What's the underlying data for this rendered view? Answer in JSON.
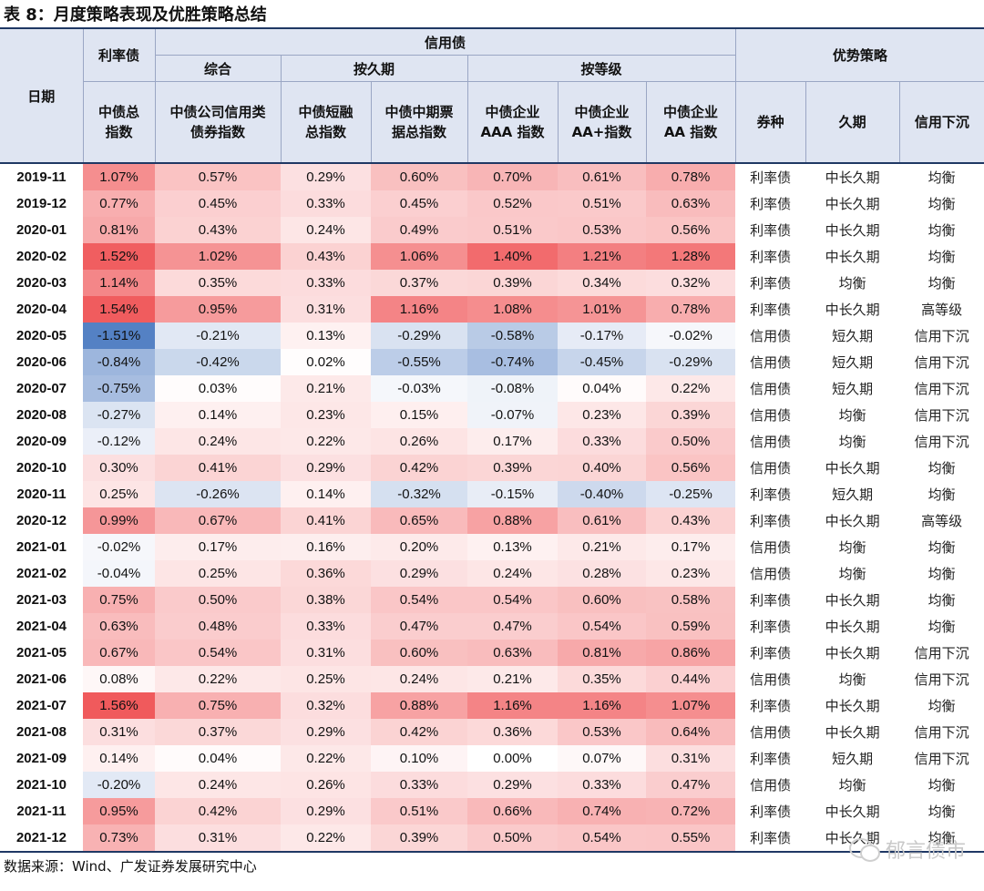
{
  "title": "表 8：月度策略表现及优胜策略总结",
  "header": {
    "date": "日期",
    "rate_group": "利率债",
    "credit_group": "信用债",
    "advantage_group": "优势策略",
    "sub_composite": "综合",
    "sub_duration": "按久期",
    "sub_grade": "按等级",
    "columns": [
      "中债总\n指数",
      "中债公司信用类\n债券指数",
      "中债短融\n总指数",
      "中债中期票\n据总指数",
      "中债企业\nAAA 指数",
      "中债企业\nAA+指数",
      "中债企业\nAA 指数",
      "券种",
      "久期",
      "信用下沉"
    ]
  },
  "rows": [
    {
      "date": "2019-11",
      "v": [
        "1.07%",
        "0.57%",
        "0.29%",
        "0.60%",
        "0.70%",
        "0.61%",
        "0.78%"
      ],
      "n": [
        1.07,
        0.57,
        0.29,
        0.6,
        0.7,
        0.61,
        0.78
      ],
      "s": [
        "利率债",
        "中长久期",
        "均衡"
      ]
    },
    {
      "date": "2019-12",
      "v": [
        "0.77%",
        "0.45%",
        "0.33%",
        "0.45%",
        "0.52%",
        "0.51%",
        "0.63%"
      ],
      "n": [
        0.77,
        0.45,
        0.33,
        0.45,
        0.52,
        0.51,
        0.63
      ],
      "s": [
        "利率债",
        "中长久期",
        "均衡"
      ]
    },
    {
      "date": "2020-01",
      "v": [
        "0.81%",
        "0.43%",
        "0.24%",
        "0.49%",
        "0.51%",
        "0.53%",
        "0.56%"
      ],
      "n": [
        0.81,
        0.43,
        0.24,
        0.49,
        0.51,
        0.53,
        0.56
      ],
      "s": [
        "利率债",
        "中长久期",
        "均衡"
      ]
    },
    {
      "date": "2020-02",
      "v": [
        "1.52%",
        "1.02%",
        "0.43%",
        "1.06%",
        "1.40%",
        "1.21%",
        "1.28%"
      ],
      "n": [
        1.52,
        1.02,
        0.43,
        1.06,
        1.4,
        1.21,
        1.28
      ],
      "s": [
        "利率债",
        "中长久期",
        "均衡"
      ]
    },
    {
      "date": "2020-03",
      "v": [
        "1.14%",
        "0.35%",
        "0.33%",
        "0.37%",
        "0.39%",
        "0.34%",
        "0.32%"
      ],
      "n": [
        1.14,
        0.35,
        0.33,
        0.37,
        0.39,
        0.34,
        0.32
      ],
      "s": [
        "利率债",
        "均衡",
        "均衡"
      ]
    },
    {
      "date": "2020-04",
      "v": [
        "1.54%",
        "0.95%",
        "0.31%",
        "1.16%",
        "1.08%",
        "1.01%",
        "0.78%"
      ],
      "n": [
        1.54,
        0.95,
        0.31,
        1.16,
        1.08,
        1.01,
        0.78
      ],
      "s": [
        "利率债",
        "中长久期",
        "高等级"
      ]
    },
    {
      "date": "2020-05",
      "v": [
        "-1.51%",
        "-0.21%",
        "0.13%",
        "-0.29%",
        "-0.58%",
        "-0.17%",
        "-0.02%"
      ],
      "n": [
        -1.51,
        -0.21,
        0.13,
        -0.29,
        -0.58,
        -0.17,
        -0.02
      ],
      "s": [
        "信用债",
        "短久期",
        "信用下沉"
      ]
    },
    {
      "date": "2020-06",
      "v": [
        "-0.84%",
        "-0.42%",
        "0.02%",
        "-0.55%",
        "-0.74%",
        "-0.45%",
        "-0.29%"
      ],
      "n": [
        -0.84,
        -0.42,
        0.02,
        -0.55,
        -0.74,
        -0.45,
        -0.29
      ],
      "s": [
        "信用债",
        "短久期",
        "信用下沉"
      ]
    },
    {
      "date": "2020-07",
      "v": [
        "-0.75%",
        "0.03%",
        "0.21%",
        "-0.03%",
        "-0.08%",
        "0.04%",
        "0.22%"
      ],
      "n": [
        -0.75,
        0.03,
        0.21,
        -0.03,
        -0.08,
        0.04,
        0.22
      ],
      "s": [
        "信用债",
        "短久期",
        "信用下沉"
      ]
    },
    {
      "date": "2020-08",
      "v": [
        "-0.27%",
        "0.14%",
        "0.23%",
        "0.15%",
        "-0.07%",
        "0.23%",
        "0.39%"
      ],
      "n": [
        -0.27,
        0.14,
        0.23,
        0.15,
        -0.07,
        0.23,
        0.39
      ],
      "s": [
        "信用债",
        "均衡",
        "信用下沉"
      ]
    },
    {
      "date": "2020-09",
      "v": [
        "-0.12%",
        "0.24%",
        "0.22%",
        "0.26%",
        "0.17%",
        "0.33%",
        "0.50%"
      ],
      "n": [
        -0.12,
        0.24,
        0.22,
        0.26,
        0.17,
        0.33,
        0.5
      ],
      "s": [
        "信用债",
        "均衡",
        "信用下沉"
      ]
    },
    {
      "date": "2020-10",
      "v": [
        "0.30%",
        "0.41%",
        "0.29%",
        "0.42%",
        "0.39%",
        "0.40%",
        "0.56%"
      ],
      "n": [
        0.3,
        0.41,
        0.29,
        0.42,
        0.39,
        0.4,
        0.56
      ],
      "s": [
        "信用债",
        "中长久期",
        "均衡"
      ]
    },
    {
      "date": "2020-11",
      "v": [
        "0.25%",
        "-0.26%",
        "0.14%",
        "-0.32%",
        "-0.15%",
        "-0.40%",
        "-0.25%"
      ],
      "n": [
        0.25,
        -0.26,
        0.14,
        -0.32,
        -0.15,
        -0.4,
        -0.25
      ],
      "s": [
        "利率债",
        "短久期",
        "均衡"
      ]
    },
    {
      "date": "2020-12",
      "v": [
        "0.99%",
        "0.67%",
        "0.41%",
        "0.65%",
        "0.88%",
        "0.61%",
        "0.43%"
      ],
      "n": [
        0.99,
        0.67,
        0.41,
        0.65,
        0.88,
        0.61,
        0.43
      ],
      "s": [
        "利率债",
        "中长久期",
        "高等级"
      ]
    },
    {
      "date": "2021-01",
      "v": [
        "-0.02%",
        "0.17%",
        "0.16%",
        "0.20%",
        "0.13%",
        "0.21%",
        "0.17%"
      ],
      "n": [
        -0.02,
        0.17,
        0.16,
        0.2,
        0.13,
        0.21,
        0.17
      ],
      "s": [
        "信用债",
        "均衡",
        "均衡"
      ]
    },
    {
      "date": "2021-02",
      "v": [
        "-0.04%",
        "0.25%",
        "0.36%",
        "0.29%",
        "0.24%",
        "0.28%",
        "0.23%"
      ],
      "n": [
        -0.04,
        0.25,
        0.36,
        0.29,
        0.24,
        0.28,
        0.23
      ],
      "s": [
        "信用债",
        "均衡",
        "均衡"
      ]
    },
    {
      "date": "2021-03",
      "v": [
        "0.75%",
        "0.50%",
        "0.38%",
        "0.54%",
        "0.54%",
        "0.60%",
        "0.58%"
      ],
      "n": [
        0.75,
        0.5,
        0.38,
        0.54,
        0.54,
        0.6,
        0.58
      ],
      "s": [
        "利率债",
        "中长久期",
        "均衡"
      ]
    },
    {
      "date": "2021-04",
      "v": [
        "0.63%",
        "0.48%",
        "0.33%",
        "0.47%",
        "0.47%",
        "0.54%",
        "0.59%"
      ],
      "n": [
        0.63,
        0.48,
        0.33,
        0.47,
        0.47,
        0.54,
        0.59
      ],
      "s": [
        "利率债",
        "中长久期",
        "均衡"
      ]
    },
    {
      "date": "2021-05",
      "v": [
        "0.67%",
        "0.54%",
        "0.31%",
        "0.60%",
        "0.63%",
        "0.81%",
        "0.86%"
      ],
      "n": [
        0.67,
        0.54,
        0.31,
        0.6,
        0.63,
        0.81,
        0.86
      ],
      "s": [
        "利率债",
        "中长久期",
        "信用下沉"
      ]
    },
    {
      "date": "2021-06",
      "v": [
        "0.08%",
        "0.22%",
        "0.25%",
        "0.24%",
        "0.21%",
        "0.35%",
        "0.44%"
      ],
      "n": [
        0.08,
        0.22,
        0.25,
        0.24,
        0.21,
        0.35,
        0.44
      ],
      "s": [
        "信用债",
        "均衡",
        "信用下沉"
      ]
    },
    {
      "date": "2021-07",
      "v": [
        "1.56%",
        "0.75%",
        "0.32%",
        "0.88%",
        "1.16%",
        "1.16%",
        "1.07%"
      ],
      "n": [
        1.56,
        0.75,
        0.32,
        0.88,
        1.16,
        1.16,
        1.07
      ],
      "s": [
        "利率债",
        "中长久期",
        "均衡"
      ]
    },
    {
      "date": "2021-08",
      "v": [
        "0.31%",
        "0.37%",
        "0.29%",
        "0.42%",
        "0.36%",
        "0.53%",
        "0.64%"
      ],
      "n": [
        0.31,
        0.37,
        0.29,
        0.42,
        0.36,
        0.53,
        0.64
      ],
      "s": [
        "信用债",
        "中长久期",
        "信用下沉"
      ]
    },
    {
      "date": "2021-09",
      "v": [
        "0.14%",
        "0.04%",
        "0.22%",
        "0.10%",
        "0.00%",
        "0.07%",
        "0.31%"
      ],
      "n": [
        0.14,
        0.04,
        0.22,
        0.1,
        0.0,
        0.07,
        0.31
      ],
      "s": [
        "利率债",
        "短久期",
        "信用下沉"
      ]
    },
    {
      "date": "2021-10",
      "v": [
        "-0.20%",
        "0.24%",
        "0.26%",
        "0.33%",
        "0.29%",
        "0.33%",
        "0.47%"
      ],
      "n": [
        -0.2,
        0.24,
        0.26,
        0.33,
        0.29,
        0.33,
        0.47
      ],
      "s": [
        "信用债",
        "均衡",
        "均衡"
      ]
    },
    {
      "date": "2021-11",
      "v": [
        "0.95%",
        "0.42%",
        "0.29%",
        "0.51%",
        "0.66%",
        "0.74%",
        "0.72%"
      ],
      "n": [
        0.95,
        0.42,
        0.29,
        0.51,
        0.66,
        0.74,
        0.72
      ],
      "s": [
        "利率债",
        "中长久期",
        "均衡"
      ]
    },
    {
      "date": "2021-12",
      "v": [
        "0.73%",
        "0.31%",
        "0.22%",
        "0.39%",
        "0.50%",
        "0.54%",
        "0.55%"
      ],
      "n": [
        0.73,
        0.31,
        0.22,
        0.39,
        0.5,
        0.54,
        0.55
      ],
      "s": [
        "利率债",
        "中长久期",
        "均衡"
      ]
    }
  ],
  "source": "数据来源：Wind、广发证券发展研究中心",
  "watermark": "郁言债市"
}
